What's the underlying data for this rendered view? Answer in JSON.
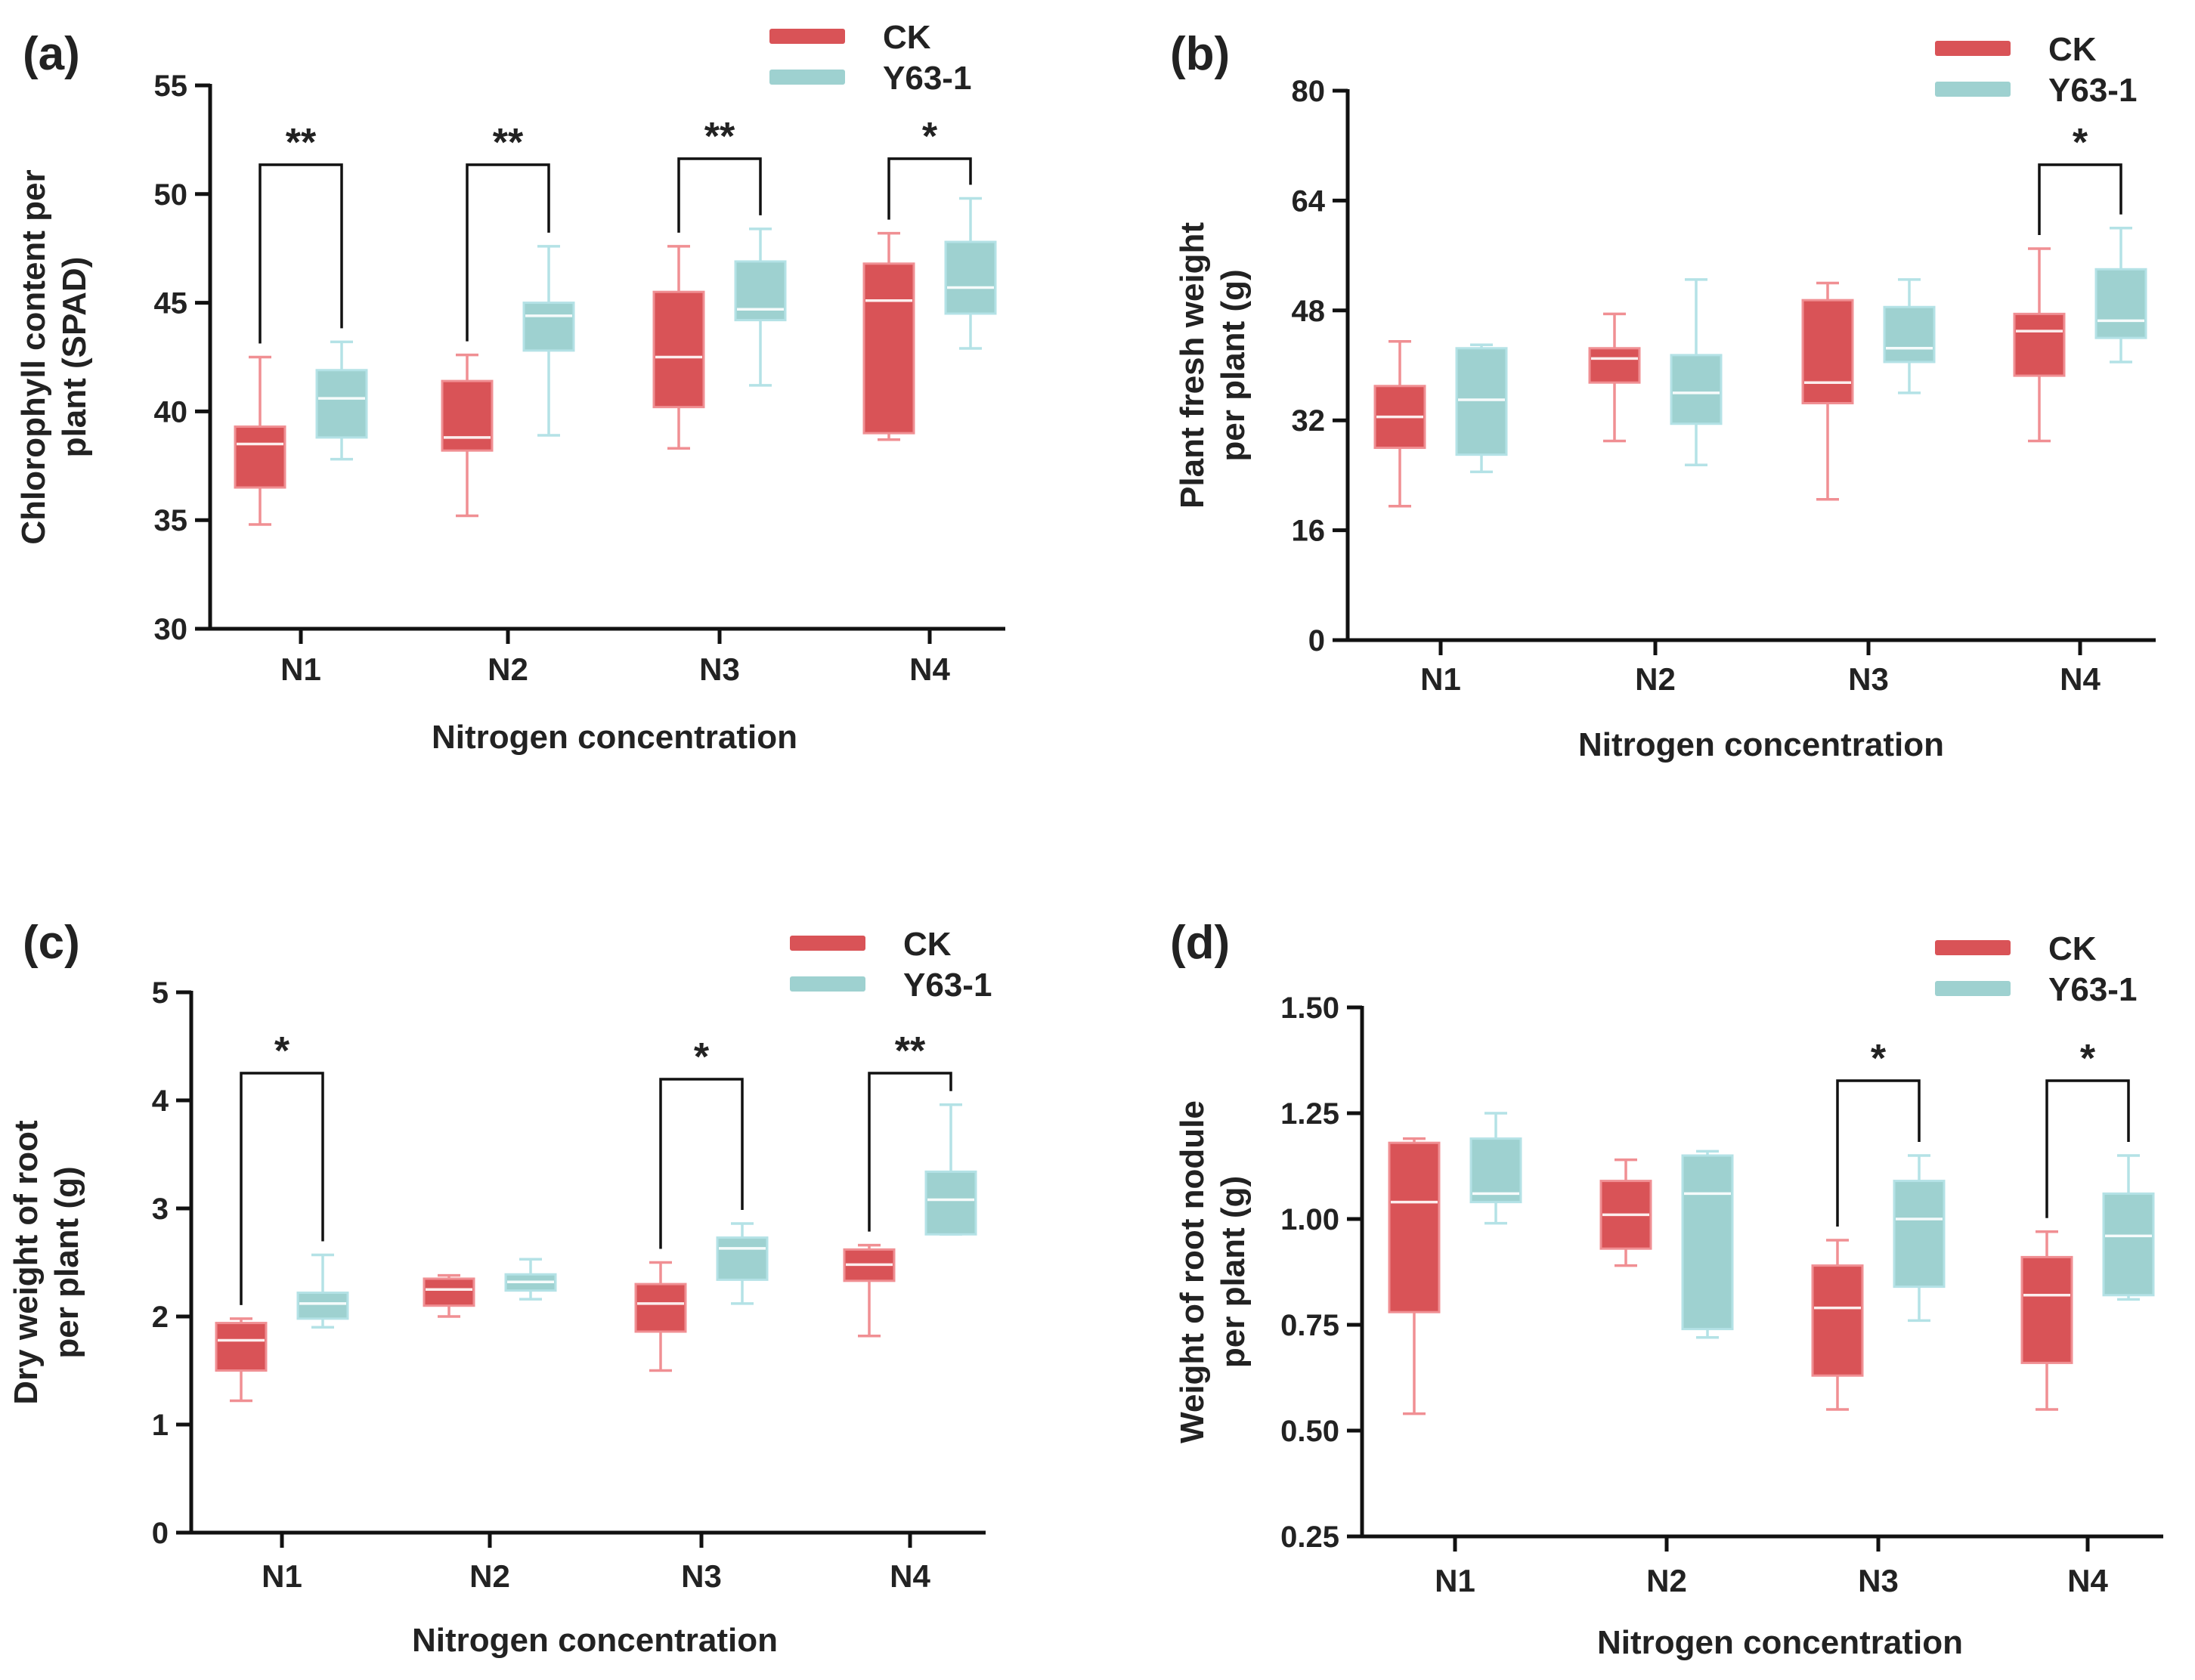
{
  "colors": {
    "ck": "#d95357",
    "y63": "#9ed1d0",
    "ck_whisker": "#f08f93",
    "y63_whisker": "#b4e2e6",
    "median": "#ffffff",
    "axis": "#111111"
  },
  "legend": [
    "CK",
    "Y63-1"
  ],
  "chart_data": [
    {
      "panel": "(a)",
      "type": "box",
      "ylabel": "Chlorophyll content per plant (SPAD)",
      "ylabel_lines": [
        "Chlorophyll content per",
        "plant (SPAD)"
      ],
      "xlabel": "Nitrogen concentration",
      "categories": [
        "N1",
        "N2",
        "N3",
        "N4"
      ],
      "ylim": [
        30,
        55
      ],
      "yticks": [
        30,
        35,
        40,
        45,
        50,
        55
      ],
      "tick_labels": [
        "30",
        "35",
        "40",
        "45",
        "50",
        "55"
      ],
      "series": [
        {
          "name": "CK",
          "boxes": [
            {
              "min": 34.8,
              "q1": 36.5,
              "median": 38.5,
              "q3": 39.3,
              "max": 42.5
            },
            {
              "min": 35.2,
              "q1": 38.2,
              "median": 38.8,
              "q3": 41.4,
              "max": 42.6
            },
            {
              "min": 38.3,
              "q1": 40.2,
              "median": 42.5,
              "q3": 45.5,
              "max": 47.6
            },
            {
              "min": 38.7,
              "q1": 39.0,
              "median": 45.1,
              "q3": 46.8,
              "max": 48.2
            }
          ]
        },
        {
          "name": "Y63-1",
          "boxes": [
            {
              "min": 37.8,
              "q1": 38.8,
              "median": 40.6,
              "q3": 41.9,
              "max": 43.2
            },
            {
              "min": 38.9,
              "q1": 42.8,
              "median": 44.4,
              "q3": 45.0,
              "max": 47.6
            },
            {
              "min": 41.2,
              "q1": 44.2,
              "median": 44.7,
              "q3": 46.9,
              "max": 48.4
            },
            {
              "min": 42.9,
              "q1": 44.5,
              "median": 45.7,
              "q3": 47.8,
              "max": 49.8
            }
          ]
        }
      ],
      "significance": [
        {
          "category": "N1",
          "label": "**"
        },
        {
          "category": "N2",
          "label": "**"
        },
        {
          "category": "N3",
          "label": "**"
        },
        {
          "category": "N4",
          "label": "*"
        }
      ]
    },
    {
      "panel": "(b)",
      "type": "box",
      "ylabel": "Plant fresh weight per plant (g)",
      "ylabel_lines": [
        "Plant fresh weight",
        "per plant (g)"
      ],
      "xlabel": "Nitrogen concentration",
      "categories": [
        "N1",
        "N2",
        "N3",
        "N4"
      ],
      "ylim": [
        0,
        80
      ],
      "yticks": [
        0,
        16,
        32,
        48,
        64,
        80
      ],
      "tick_labels": [
        "0",
        "16",
        "32",
        "48",
        "64",
        "80"
      ],
      "series": [
        {
          "name": "CK",
          "boxes": [
            {
              "min": 19.5,
              "q1": 28.0,
              "median": 32.5,
              "q3": 37.0,
              "max": 43.5
            },
            {
              "min": 29.0,
              "q1": 37.5,
              "median": 41.0,
              "q3": 42.5,
              "max": 47.5
            },
            {
              "min": 20.5,
              "q1": 34.5,
              "median": 37.5,
              "q3": 49.5,
              "max": 52.0
            },
            {
              "min": 29.0,
              "q1": 38.5,
              "median": 45.0,
              "q3": 47.5,
              "max": 57.0
            }
          ]
        },
        {
          "name": "Y63-1",
          "boxes": [
            {
              "min": 24.5,
              "q1": 27.0,
              "median": 35.0,
              "q3": 42.5,
              "max": 43.0
            },
            {
              "min": 25.5,
              "q1": 31.5,
              "median": 36.0,
              "q3": 41.5,
              "max": 52.5
            },
            {
              "min": 36.0,
              "q1": 40.5,
              "median": 42.5,
              "q3": 48.5,
              "max": 52.5
            },
            {
              "min": 40.5,
              "q1": 44.0,
              "median": 46.5,
              "q3": 54.0,
              "max": 60.0
            }
          ]
        }
      ],
      "significance": [
        {
          "category": "N4",
          "label": "*"
        }
      ]
    },
    {
      "panel": "(c)",
      "type": "box",
      "ylabel": "Dry weight of root per plant (g)",
      "ylabel_lines": [
        "Dry weight of root",
        "per plant (g)"
      ],
      "xlabel": "Nitrogen concentration",
      "categories": [
        "N1",
        "N2",
        "N3",
        "N4"
      ],
      "ylim": [
        0,
        5
      ],
      "yticks": [
        0,
        1,
        2,
        3,
        4,
        5
      ],
      "tick_labels": [
        "0",
        "1",
        "2",
        "3",
        "4",
        "5"
      ],
      "series": [
        {
          "name": "CK",
          "boxes": [
            {
              "min": 1.22,
              "q1": 1.5,
              "median": 1.78,
              "q3": 1.94,
              "max": 1.98
            },
            {
              "min": 2.0,
              "q1": 2.1,
              "median": 2.25,
              "q3": 2.35,
              "max": 2.38
            },
            {
              "min": 1.5,
              "q1": 1.86,
              "median": 2.12,
              "q3": 2.3,
              "max": 2.5
            },
            {
              "min": 1.82,
              "q1": 2.33,
              "median": 2.48,
              "q3": 2.62,
              "max": 2.66
            }
          ]
        },
        {
          "name": "Y63-1",
          "boxes": [
            {
              "min": 1.9,
              "q1": 1.98,
              "median": 2.12,
              "q3": 2.22,
              "max": 2.57
            },
            {
              "min": 2.16,
              "q1": 2.24,
              "median": 2.32,
              "q3": 2.39,
              "max": 2.53
            },
            {
              "min": 2.12,
              "q1": 2.34,
              "median": 2.63,
              "q3": 2.73,
              "max": 2.86
            },
            {
              "min": 2.76,
              "q1": 2.76,
              "median": 3.08,
              "q3": 3.34,
              "max": 3.96
            }
          ]
        }
      ],
      "significance": [
        {
          "category": "N1",
          "label": "*"
        },
        {
          "category": "N3",
          "label": "*"
        },
        {
          "category": "N4",
          "label": "**"
        }
      ]
    },
    {
      "panel": "(d)",
      "type": "box",
      "ylabel": "Weight of root nodule per plant (g)",
      "ylabel_lines": [
        "Weight of root nodule",
        "per plant (g)"
      ],
      "xlabel": "Nitrogen concentration",
      "categories": [
        "N1",
        "N2",
        "N3",
        "N4"
      ],
      "ylim": [
        0.25,
        1.5
      ],
      "yticks": [
        0.25,
        0.5,
        0.75,
        1.0,
        1.25,
        1.5
      ],
      "tick_labels": [
        "0.25",
        "0.50",
        "0.75",
        "1.00",
        "1.25",
        "1.50"
      ],
      "series": [
        {
          "name": "CK",
          "boxes": [
            {
              "min": 0.54,
              "q1": 0.78,
              "median": 1.04,
              "q3": 1.18,
              "max": 1.19
            },
            {
              "min": 0.89,
              "q1": 0.93,
              "median": 1.01,
              "q3": 1.09,
              "max": 1.14
            },
            {
              "min": 0.55,
              "q1": 0.63,
              "median": 0.79,
              "q3": 0.89,
              "max": 0.95
            },
            {
              "min": 0.55,
              "q1": 0.66,
              "median": 0.82,
              "q3": 0.91,
              "max": 0.97
            }
          ]
        },
        {
          "name": "Y63-1",
          "boxes": [
            {
              "min": 0.99,
              "q1": 1.04,
              "median": 1.06,
              "q3": 1.19,
              "max": 1.25
            },
            {
              "min": 0.72,
              "q1": 0.74,
              "median": 1.06,
              "q3": 1.15,
              "max": 1.16
            },
            {
              "min": 0.76,
              "q1": 0.84,
              "median": 1.0,
              "q3": 1.09,
              "max": 1.15
            },
            {
              "min": 0.81,
              "q1": 0.82,
              "median": 0.96,
              "q3": 1.06,
              "max": 1.15
            }
          ]
        }
      ],
      "significance": [
        {
          "category": "N3",
          "label": "*"
        },
        {
          "category": "N4",
          "label": "*"
        }
      ]
    }
  ]
}
